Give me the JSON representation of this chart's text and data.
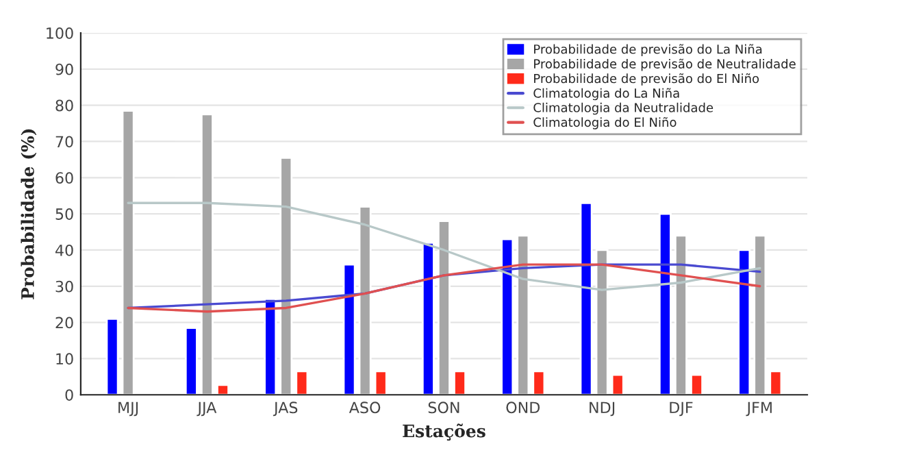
{
  "chart_data": {
    "type": "bar",
    "xlabel": "Estações",
    "ylabel": "Probabilidade (%)",
    "categories": [
      "MJJ",
      "JJA",
      "JAS",
      "ASO",
      "SON",
      "OND",
      "NDJ",
      "DJF",
      "JFM"
    ],
    "ylim": [
      0,
      100
    ],
    "yticks": [
      0,
      10,
      20,
      30,
      40,
      50,
      60,
      70,
      80,
      90,
      100
    ],
    "grid": "y",
    "legend": "top right",
    "series": [
      {
        "name": "Probabilidade de previsão do La Niña",
        "color": "#0000ff",
        "values": [
          21,
          18.5,
          26.5,
          36,
          42,
          43,
          53,
          50,
          40
        ]
      },
      {
        "name": "Probabilidade de previsão de Neutralidade",
        "color": "#a6a6a6",
        "values": [
          78.5,
          77.5,
          65.5,
          52,
          48,
          44,
          40,
          44,
          44
        ]
      },
      {
        "name": "Probabilidade de previsão do El Niño",
        "color": "#ff2a1a",
        "values": [
          null,
          2.7,
          6.5,
          6.5,
          6.5,
          6.5,
          5.5,
          5.5,
          6.5
        ]
      },
      {
        "name": "Climatologia do La Niña",
        "type": "line",
        "color": "#4a4ad0",
        "values": [
          24,
          25,
          26,
          28,
          33,
          35,
          36,
          36,
          34
        ]
      },
      {
        "name": "Climatologia da Neutralidade",
        "type": "line",
        "color": "#b8c8c8",
        "values": [
          53,
          53,
          52,
          47,
          40,
          32,
          29,
          31,
          35
        ]
      },
      {
        "name": "Climatologia do El Niño",
        "type": "line",
        "color": "#e05050",
        "values": [
          24,
          23,
          24,
          28,
          33,
          36,
          36,
          33,
          30
        ]
      }
    ]
  }
}
